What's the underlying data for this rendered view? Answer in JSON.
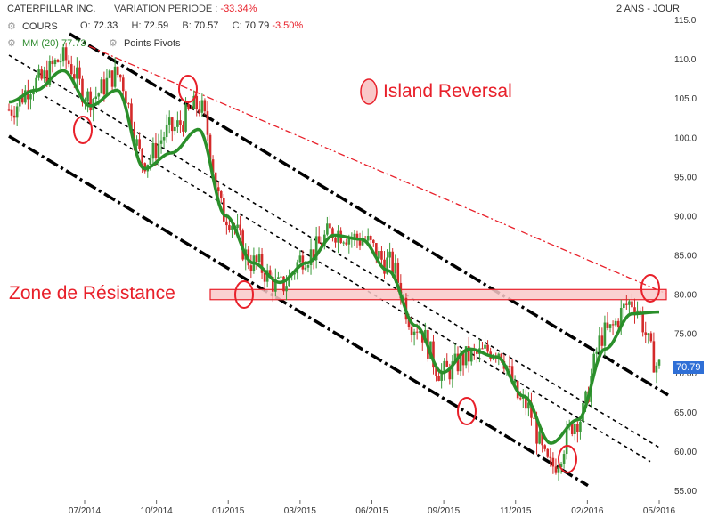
{
  "header": {
    "ticker": "CATERPILLAR INC.",
    "variation_label": "VARIATION PERIODE :",
    "variation_value": "-33.34%",
    "range_label": "2 ANS - JOUR",
    "series_label": "COURS",
    "open_label": "O:",
    "open_value": "72.33",
    "high_label": "H:",
    "high_value": "72.59",
    "low_label": "B:",
    "low_value": "70.57",
    "close_label": "C:",
    "close_value": "70.79",
    "close_change": "-3.50%",
    "ma_label": "MM (20)",
    "ma_value": "77.73",
    "pivots_label": "Points Pivots",
    "icons": [
      "gear-icon",
      "gear-icon",
      "gear-icon"
    ]
  },
  "annotations": {
    "island_reversal": "Island Reversal",
    "resistance_zone": "Zone de Résistance",
    "last_price": "70.79"
  },
  "colors": {
    "up_candle": "#3a9a3a",
    "down_candle": "#d42a2a",
    "moving_average": "#2a8f2a",
    "channel": "#000000",
    "resistance_line": "#e8202a",
    "resistance_fill": "#f9c8c8",
    "price_tag": "#2f6fd6"
  },
  "chart_data": {
    "type": "line",
    "title": "CATERPILLAR INC.",
    "xlabel": "",
    "ylabel": "",
    "ylim": [
      55,
      115
    ],
    "yticks": [
      "115.0",
      "110.0",
      "105.0",
      "100.0",
      "95.00",
      "90.00",
      "85.00",
      "80.00",
      "75.00",
      "70.00",
      "65.00",
      "60.00",
      "55.00"
    ],
    "xticks": [
      "07/2014",
      "10/2014",
      "01/2015",
      "03/2015",
      "06/2015",
      "09/2015",
      "11/2015",
      "02/2016",
      "05/2016"
    ],
    "grid": false,
    "resistance_zone": [
      79.3,
      80.6
    ],
    "series": [
      {
        "name": "COURS",
        "x": [
          "05/2014",
          "06/2014",
          "07/2014",
          "08/2014",
          "09/2014",
          "10/2014",
          "11/2014",
          "12/2014",
          "01/2015",
          "02/2015",
          "03/2015",
          "04/2015",
          "05/2015",
          "06/2015",
          "07/2015",
          "08/2015",
          "09/2015",
          "10/2015",
          "11/2015",
          "12/2015",
          "01/2016",
          "02/2016",
          "03/2016",
          "04/2016",
          "05/2016"
        ],
        "values": [
          103.5,
          107,
          110,
          105,
          108,
          97,
          101,
          104,
          90,
          84,
          81,
          85,
          88,
          87,
          84,
          76,
          70,
          72,
          73,
          66,
          58,
          64,
          75,
          79,
          70.79
        ]
      },
      {
        "name": "MM (20)",
        "x": [
          "05/2014",
          "06/2014",
          "07/2014",
          "08/2014",
          "09/2014",
          "10/2014",
          "11/2014",
          "12/2014",
          "01/2015",
          "02/2015",
          "03/2015",
          "04/2015",
          "05/2015",
          "06/2015",
          "07/2015",
          "08/2015",
          "09/2015",
          "10/2015",
          "11/2015",
          "12/2015",
          "01/2016",
          "02/2016",
          "03/2016",
          "04/2016",
          "05/2016"
        ],
        "values": [
          104.5,
          106,
          108.5,
          104,
          106,
          96,
          98,
          101,
          90,
          84,
          81.5,
          84,
          87.5,
          87,
          83,
          76,
          70,
          73,
          72,
          67,
          61,
          64,
          73,
          77.5,
          77.73
        ]
      }
    ]
  }
}
